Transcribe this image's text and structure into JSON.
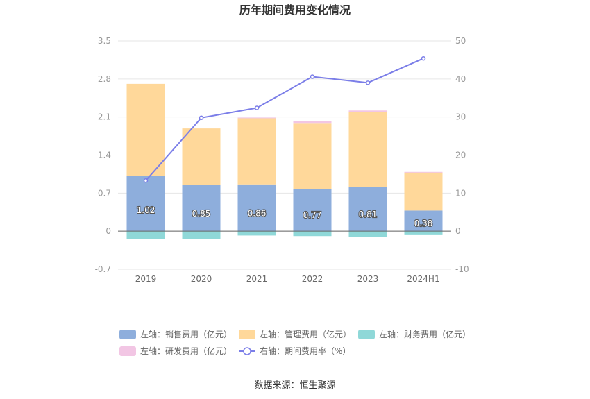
{
  "chart_data": {
    "type": "bar",
    "title": "历年期间费用变化情况",
    "categories": [
      "2019",
      "2020",
      "2021",
      "2022",
      "2023",
      "2024H1"
    ],
    "left_axis": {
      "ticks": [
        "3.5",
        "2.8",
        "2.1",
        "1.4",
        "0.7",
        "0",
        "-0.7"
      ],
      "ylim": [
        -0.7,
        3.5
      ]
    },
    "right_axis": {
      "ticks": [
        "50",
        "40",
        "30",
        "20",
        "10",
        "0",
        "-10"
      ],
      "ylim": [
        -10,
        50
      ]
    },
    "series": [
      {
        "name": "左轴：销售费用（亿元）",
        "axis": "left",
        "type": "bar",
        "color": "#8eaedc",
        "values": [
          1.02,
          0.85,
          0.86,
          0.77,
          0.81,
          0.38
        ],
        "labels": [
          "1.02",
          "0.85",
          "0.86",
          "0.77",
          "0.81",
          "0.38"
        ]
      },
      {
        "name": "左轴：管理费用（亿元）",
        "axis": "left",
        "type": "bar",
        "color": "#ffd89a",
        "values": [
          1.69,
          1.04,
          1.22,
          1.22,
          1.38,
          0.7
        ]
      },
      {
        "name": "左轴：财务费用（亿元）",
        "axis": "left",
        "type": "bar",
        "color": "#8fd8d8",
        "values": [
          -0.14,
          -0.15,
          -0.08,
          -0.09,
          -0.11,
          -0.06
        ]
      },
      {
        "name": "左轴：研发费用（亿元）",
        "axis": "left",
        "type": "bar",
        "color": "#f2c6e4",
        "values": [
          0.0,
          0.0,
          0.01,
          0.03,
          0.03,
          0.01
        ]
      },
      {
        "name": "右轴：期间费用率（%）",
        "axis": "right",
        "type": "line",
        "color": "#7b7ee8",
        "values": [
          13.3,
          29.8,
          32.4,
          40.6,
          39.0,
          45.4
        ]
      }
    ],
    "legend_position": "bottom",
    "grid": true
  },
  "source": "数据来源：恒生聚源"
}
